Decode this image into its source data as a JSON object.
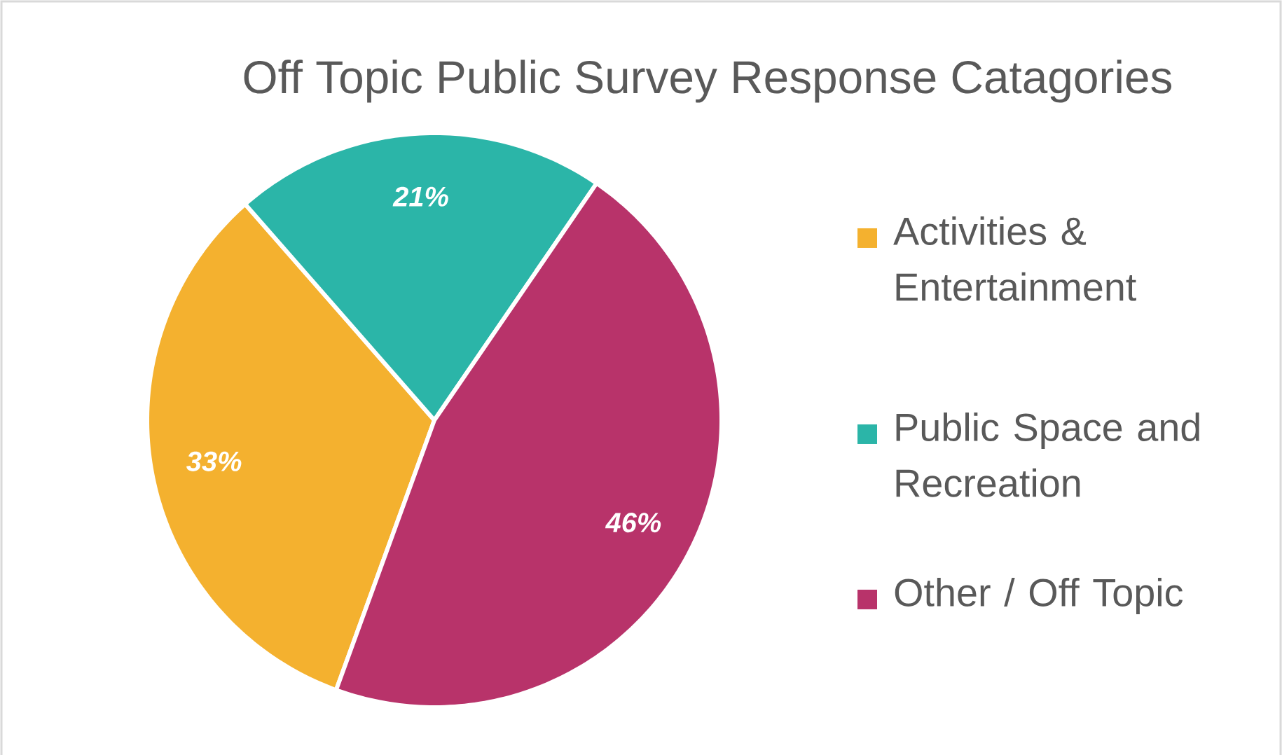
{
  "chart_data": {
    "type": "pie",
    "title": "Off Topic Public Survey Response Catagories",
    "categories": [
      "Activities & Entertainment",
      "Public Space and Recreation",
      "Other / Off Topic"
    ],
    "values": [
      33,
      21,
      46
    ],
    "colors": [
      "#f4b12f",
      "#2bb5a8",
      "#b8336a"
    ],
    "value_labels": [
      "33%",
      "21%",
      "46%"
    ],
    "legend": "right"
  }
}
